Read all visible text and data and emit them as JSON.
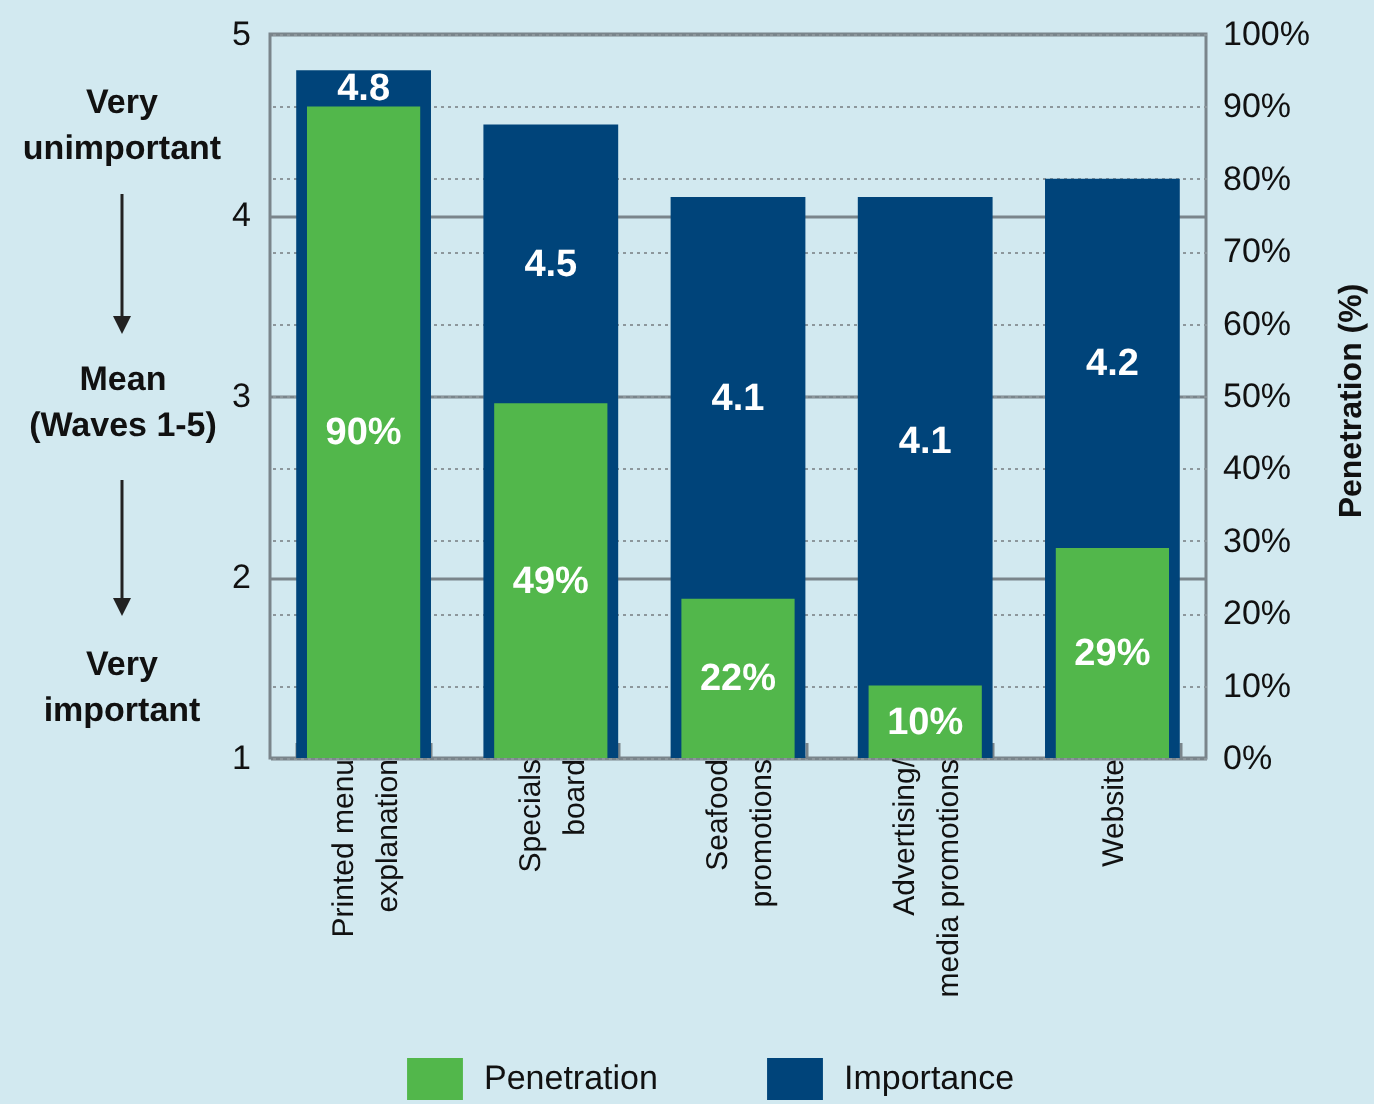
{
  "chart_data": {
    "type": "bar",
    "categories": [
      "Printed menu explanation",
      "Specials board",
      "Seafood promotions",
      "Advertising/media promotions",
      "Website"
    ],
    "series": [
      {
        "name": "Penetration",
        "color": "#52b74b",
        "axis": "y2",
        "values": [
          90,
          49,
          22,
          10,
          29
        ],
        "value_labels": [
          "90%",
          "49%",
          "22%",
          "10%",
          "29%"
        ]
      },
      {
        "name": "Importance",
        "color": "#00447a",
        "values": [
          4.8,
          4.5,
          4.1,
          4.1,
          4.2
        ],
        "value_labels": [
          "4.8",
          "4.5",
          "4.1",
          "4.1",
          "4.2"
        ]
      }
    ],
    "ylabel": "Mean (Waves 1-5)",
    "y2label": "Penetration (%)",
    "annotations": [
      "Very unimportant",
      "Very important"
    ],
    "ylim": [
      1,
      5
    ],
    "yticks": [
      1,
      2,
      3,
      4,
      5
    ],
    "y2lim": [
      0,
      100
    ],
    "y2ticks": [
      {
        "value": 0,
        "label": "0%"
      },
      {
        "value": 10,
        "label": "10%"
      },
      {
        "value": 20,
        "label": "20%"
      },
      {
        "value": 30,
        "label": "30%"
      },
      {
        "value": 40,
        "label": "40%"
      },
      {
        "value": 50,
        "label": "50%"
      },
      {
        "value": 60,
        "label": "60%"
      },
      {
        "value": 70,
        "label": "70%"
      },
      {
        "value": 80,
        "label": "80%"
      },
      {
        "value": 90,
        "label": "90%"
      },
      {
        "value": 100,
        "label": "100%"
      }
    ],
    "grid": true,
    "legend": "bottom"
  }
}
